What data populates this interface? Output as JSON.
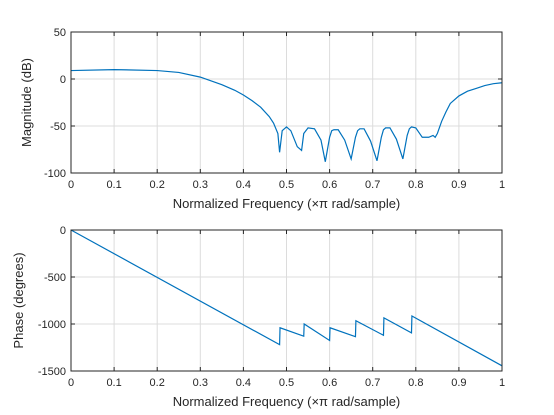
{
  "colors": {
    "line": "#0072bd",
    "axis": "#262626",
    "grid": "#dcdcdc",
    "background": "#ffffff"
  },
  "chart_data": [
    {
      "type": "line",
      "xlabel": "Normalized Frequency  (×π rad/sample)",
      "ylabel": "Magnitude (dB)",
      "xlim": [
        0,
        1
      ],
      "ylim": [
        -100,
        50
      ],
      "x_ticks": [
        0,
        0.1,
        0.2,
        0.3,
        0.4,
        0.5,
        0.6,
        0.7,
        0.8,
        0.9,
        1
      ],
      "x_tick_labels": [
        "0",
        "0.1",
        "0.2",
        "0.3",
        "0.4",
        "0.5",
        "0.6",
        "0.7",
        "0.8",
        "0.9",
        "1"
      ],
      "y_ticks": [
        50,
        0,
        -50,
        -100
      ],
      "y_tick_labels": [
        "50",
        "0",
        "-50",
        "-100"
      ],
      "grid": true,
      "series": [
        {
          "x": [
            0,
            0.1,
            0.2,
            0.25,
            0.3,
            0.35,
            0.38,
            0.4,
            0.42,
            0.44,
            0.46,
            0.47,
            0.48,
            0.484,
            0.49,
            0.5,
            0.51,
            0.525,
            0.535,
            0.54,
            0.55,
            0.565,
            0.58,
            0.59,
            0.6,
            0.605,
            0.61,
            0.62,
            0.635,
            0.65,
            0.66,
            0.665,
            0.67,
            0.68,
            0.695,
            0.71,
            0.72,
            0.725,
            0.73,
            0.74,
            0.755,
            0.77,
            0.78,
            0.785,
            0.79,
            0.8,
            0.815,
            0.83,
            0.84,
            0.845,
            0.85,
            0.86,
            0.87,
            0.88,
            0.9,
            0.92,
            0.94,
            0.96,
            0.98,
            1.0
          ],
          "y": [
            9,
            10,
            9,
            7,
            2,
            -6,
            -12,
            -17,
            -23,
            -30,
            -40,
            -47,
            -58,
            -78,
            -55,
            -51,
            -55,
            -72,
            -76,
            -58,
            -52,
            -53,
            -65,
            -88,
            -62,
            -55,
            -54,
            -54,
            -65,
            -85,
            -62,
            -55,
            -53,
            -53,
            -66,
            -87,
            -62,
            -54,
            -52,
            -52,
            -64,
            -85,
            -60,
            -53,
            -51,
            -52,
            -62,
            -62,
            -60,
            -62,
            -58,
            -45,
            -35,
            -26,
            -18,
            -13,
            -10,
            -7,
            -5,
            -4
          ]
        }
      ]
    },
    {
      "type": "line",
      "xlabel": "Normalized Frequency  (×π rad/sample)",
      "ylabel": "Phase (degrees)",
      "xlim": [
        0,
        1
      ],
      "ylim": [
        -1500,
        0
      ],
      "x_ticks": [
        0,
        0.1,
        0.2,
        0.3,
        0.4,
        0.5,
        0.6,
        0.7,
        0.8,
        0.9,
        1
      ],
      "x_tick_labels": [
        "0",
        "0.1",
        "0.2",
        "0.3",
        "0.4",
        "0.5",
        "0.6",
        "0.7",
        "0.8",
        "0.9",
        "1"
      ],
      "y_ticks": [
        0,
        -500,
        -1000,
        -1500
      ],
      "y_tick_labels": [
        "0",
        "-500",
        "-1000",
        "-1500"
      ],
      "grid": true,
      "series": [
        {
          "x": [
            0,
            0.484,
            0.485,
            0.54,
            0.541,
            0.6,
            0.601,
            0.66,
            0.661,
            0.725,
            0.726,
            0.79,
            0.791,
            1.0
          ],
          "y": [
            0,
            -1220,
            -1040,
            -1130,
            -1000,
            -1175,
            -1040,
            -1135,
            -965,
            -1120,
            -935,
            -1095,
            -915,
            -1445
          ]
        }
      ]
    }
  ]
}
